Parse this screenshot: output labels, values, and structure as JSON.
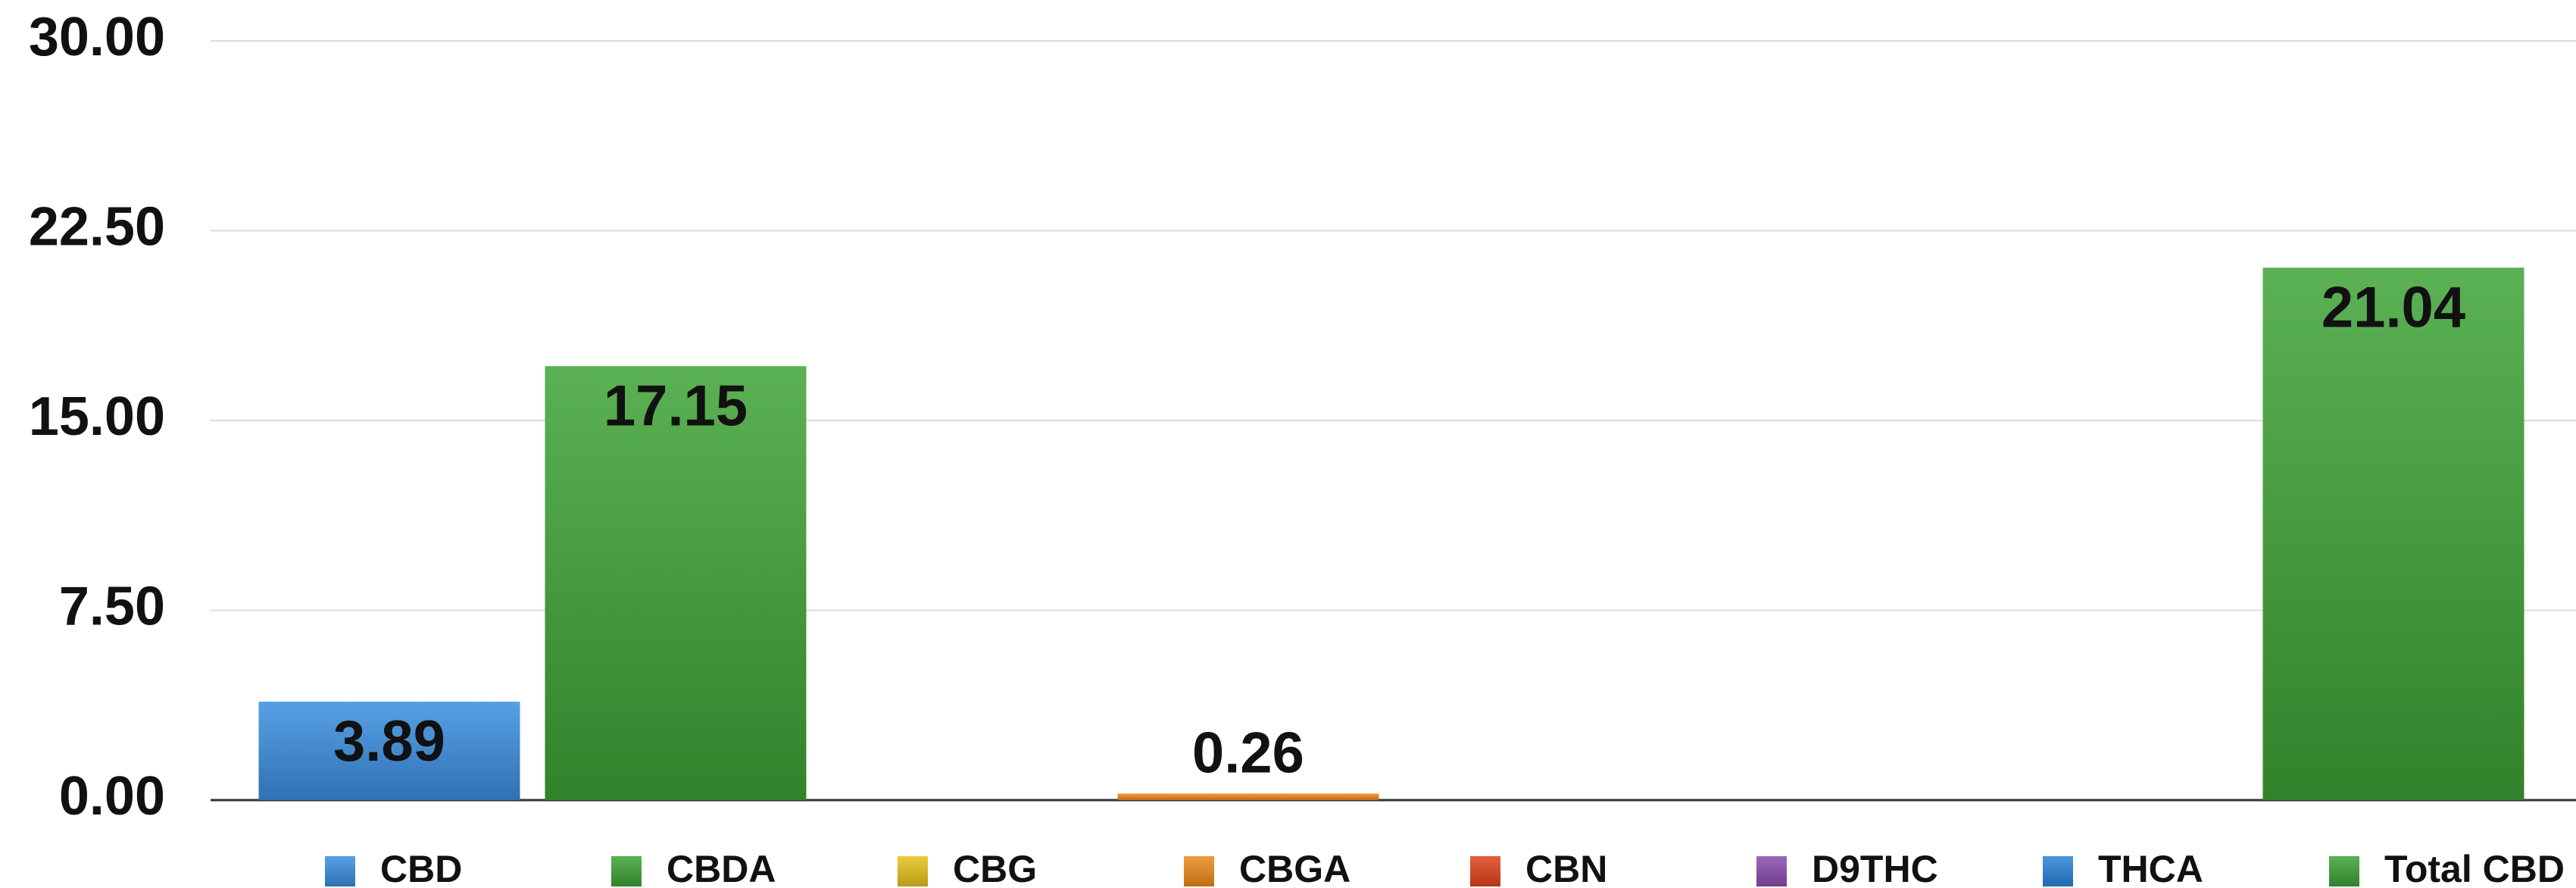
{
  "chart_data": {
    "type": "bar",
    "categories": [
      "CBD",
      "CBDA",
      "CBG",
      "CBGA",
      "CBN",
      "D9THC",
      "THCA",
      "Total CBD"
    ],
    "values": [
      3.89,
      17.15,
      null,
      0.26,
      null,
      null,
      null,
      21.04
    ],
    "colors": [
      "#3a8fe0",
      "#3ea336",
      "#e6c31a",
      "#ef8a1d",
      "#e2431b",
      "#8c4db0",
      "#2a84da",
      "#3ea336"
    ],
    "ylim": [
      0,
      30
    ],
    "yticks": [
      {
        "value": 0,
        "label": "0.00"
      },
      {
        "value": 7.5,
        "label": "7.50"
      },
      {
        "value": 15,
        "label": "15.00"
      },
      {
        "value": 22.5,
        "label": "22.50"
      },
      {
        "value": 30,
        "label": "30.00"
      }
    ],
    "grid": true,
    "legend": "bottom"
  }
}
